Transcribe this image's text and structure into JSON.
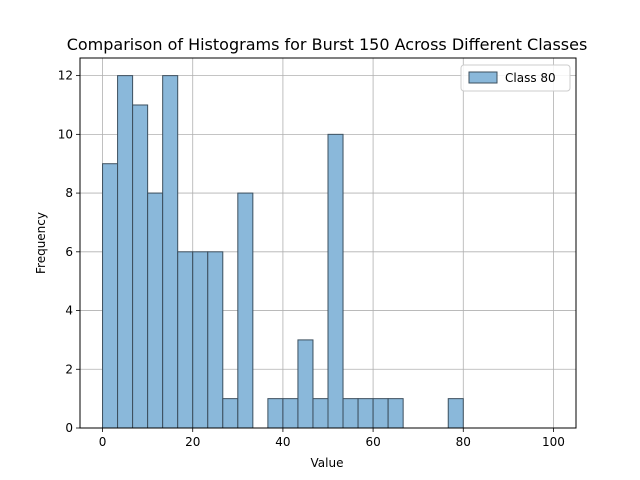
{
  "chart_data": {
    "type": "bar",
    "title": "Comparison of Histograms for Burst 150 Across Different Classes",
    "xlabel": "Value",
    "ylabel": "Frequency",
    "xlim": [
      -5,
      105
    ],
    "ylim": [
      0,
      12.6
    ],
    "x_ticks": [
      0,
      20,
      40,
      60,
      80,
      100
    ],
    "y_ticks": [
      0,
      2,
      4,
      6,
      8,
      10,
      12
    ],
    "grid": true,
    "legend_position": "top-right",
    "bin_width": 3.333,
    "series": [
      {
        "name": "Class 80",
        "color": "#8ab8da",
        "edge_color": "#3c4f5e",
        "bins": [
          {
            "x_start": 0.0,
            "x_end": 3.333,
            "count": 9
          },
          {
            "x_start": 3.333,
            "x_end": 6.667,
            "count": 12
          },
          {
            "x_start": 6.667,
            "x_end": 10.0,
            "count": 11
          },
          {
            "x_start": 10.0,
            "x_end": 13.333,
            "count": 8
          },
          {
            "x_start": 13.333,
            "x_end": 16.667,
            "count": 12
          },
          {
            "x_start": 16.667,
            "x_end": 20.0,
            "count": 6
          },
          {
            "x_start": 20.0,
            "x_end": 23.333,
            "count": 6
          },
          {
            "x_start": 23.333,
            "x_end": 26.667,
            "count": 6
          },
          {
            "x_start": 26.667,
            "x_end": 30.0,
            "count": 1
          },
          {
            "x_start": 30.0,
            "x_end": 33.333,
            "count": 8
          },
          {
            "x_start": 33.333,
            "x_end": 36.667,
            "count": 0
          },
          {
            "x_start": 36.667,
            "x_end": 40.0,
            "count": 1
          },
          {
            "x_start": 40.0,
            "x_end": 43.333,
            "count": 1
          },
          {
            "x_start": 43.333,
            "x_end": 46.667,
            "count": 3
          },
          {
            "x_start": 46.667,
            "x_end": 50.0,
            "count": 1
          },
          {
            "x_start": 50.0,
            "x_end": 53.333,
            "count": 10
          },
          {
            "x_start": 53.333,
            "x_end": 56.667,
            "count": 1
          },
          {
            "x_start": 56.667,
            "x_end": 60.0,
            "count": 1
          },
          {
            "x_start": 60.0,
            "x_end": 63.333,
            "count": 1
          },
          {
            "x_start": 63.333,
            "x_end": 66.667,
            "count": 1
          },
          {
            "x_start": 66.667,
            "x_end": 70.0,
            "count": 0
          },
          {
            "x_start": 70.0,
            "x_end": 73.333,
            "count": 0
          },
          {
            "x_start": 73.333,
            "x_end": 76.667,
            "count": 0
          },
          {
            "x_start": 76.667,
            "x_end": 80.0,
            "count": 1
          },
          {
            "x_start": 80.0,
            "x_end": 83.333,
            "count": 0
          },
          {
            "x_start": 83.333,
            "x_end": 86.667,
            "count": 0
          },
          {
            "x_start": 86.667,
            "x_end": 90.0,
            "count": 0
          },
          {
            "x_start": 90.0,
            "x_end": 93.333,
            "count": 0
          },
          {
            "x_start": 93.333,
            "x_end": 96.667,
            "count": 0
          },
          {
            "x_start": 96.667,
            "x_end": 100.0,
            "count": 0
          }
        ]
      }
    ]
  }
}
